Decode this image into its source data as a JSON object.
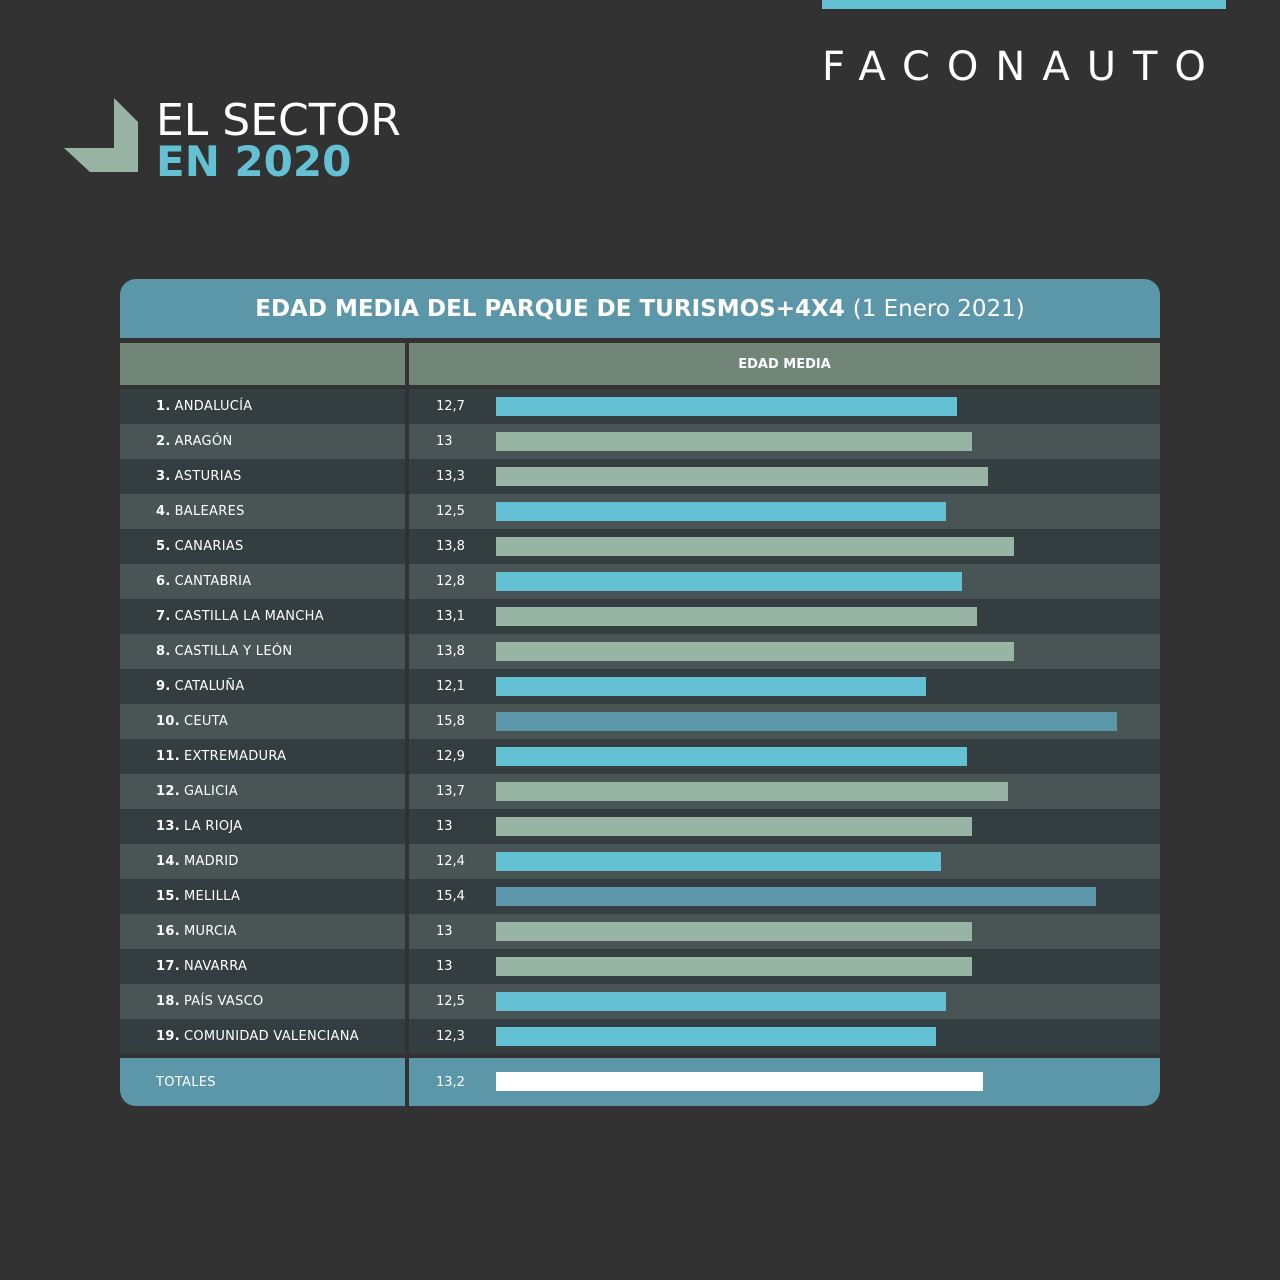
{
  "brand": "FACONAUTO",
  "header": {
    "line1": "EL SECTOR",
    "line2": "EN 2020"
  },
  "colors": {
    "background": "#323232",
    "accent": "#63c1d3",
    "sage": "#98b4a4",
    "teal": "#5b97a8",
    "total": "#ffffff"
  },
  "chart_data": {
    "type": "bar",
    "orientation": "horizontal",
    "title": "EDAD MEDIA DEL PARQUE DE TURISMOS+4X4",
    "subtitle": "(1 Enero 2021)",
    "column_header": "EDAD MEDIA",
    "categories": [
      {
        "num": "1.",
        "name": "ANDALUCÍA"
      },
      {
        "num": "2.",
        "name": "ARAGÓN"
      },
      {
        "num": "3.",
        "name": "ASTURIAS"
      },
      {
        "num": "4.",
        "name": "BALEARES"
      },
      {
        "num": "5.",
        "name": "CANARIAS"
      },
      {
        "num": "6.",
        "name": "CANTABRIA"
      },
      {
        "num": "7.",
        "name": "CASTILLA LA MANCHA"
      },
      {
        "num": "8.",
        "name": "CASTILLA Y LEÓN"
      },
      {
        "num": "9.",
        "name": "CATALUÑA"
      },
      {
        "num": "10.",
        "name": "CEUTA"
      },
      {
        "num": "11.",
        "name": "EXTREMADURA"
      },
      {
        "num": "12.",
        "name": "GALICIA"
      },
      {
        "num": "13.",
        "name": "LA RIOJA"
      },
      {
        "num": "14.",
        "name": "MADRID"
      },
      {
        "num": "15.",
        "name": "MELILLA"
      },
      {
        "num": "16.",
        "name": "MURCIA"
      },
      {
        "num": "17.",
        "name": "NAVARRA"
      },
      {
        "num": "18.",
        "name": "PAÍS VASCO"
      },
      {
        "num": "19.",
        "name": "COMUNIDAD VALENCIANA"
      }
    ],
    "values": [
      12.7,
      13,
      13.3,
      12.5,
      13.8,
      12.8,
      13.1,
      13.8,
      12.1,
      15.8,
      12.9,
      13.7,
      13,
      12.4,
      15.4,
      13,
      13,
      12.5,
      12.3
    ],
    "labels": [
      "12,7",
      "13",
      "13,3",
      "12,5",
      "13,8",
      "12,8",
      "13,1",
      "13,8",
      "12,1",
      "15,8",
      "12,9",
      "13,7",
      "13",
      "12,4",
      "15,4",
      "13",
      "13",
      "12,5",
      "12,3"
    ],
    "bar_colors": [
      "#63c1d3",
      "#98b4a4",
      "#98b4a4",
      "#63c1d3",
      "#98b4a4",
      "#63c1d3",
      "#98b4a4",
      "#98b4a4",
      "#63c1d3",
      "#5b97a8",
      "#63c1d3",
      "#98b4a4",
      "#98b4a4",
      "#63c1d3",
      "#5b97a8",
      "#98b4a4",
      "#98b4a4",
      "#63c1d3",
      "#63c1d3"
    ],
    "total": {
      "name": "TOTALES",
      "value": 13.2,
      "label": "13,2"
    }
  }
}
